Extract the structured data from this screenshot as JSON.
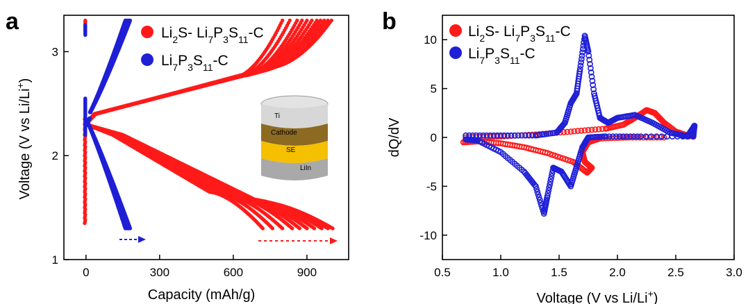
{
  "panels": {
    "a": {
      "letter": "a"
    },
    "b": {
      "letter": "b"
    }
  },
  "colors": {
    "red": "#ff1a1a",
    "blue": "#1f1fd6",
    "axis": "#000000"
  },
  "chart_data": [
    {
      "type": "scatter",
      "panel": "a",
      "xlabel": "Capacity (mAh/g)",
      "ylabel": "Voltage (V vs Li/Li+)",
      "xlim": [
        -90,
        1070
      ],
      "ylim": [
        1.0,
        3.35
      ],
      "xticks": [
        0,
        300,
        600,
        900
      ],
      "yticks": [
        1,
        2,
        3
      ],
      "grid": false,
      "legend_position": "top",
      "series": [
        {
          "name": "Li2S- Li7P3S11-C",
          "name_parts": {
            "p1": "Li",
            "s1": "2",
            "p2": "S- Li",
            "s2": "7",
            "p3": "P",
            "s3": "3",
            "p4": "S",
            "s4": "11",
            "p5": "-C"
          },
          "color": "red",
          "charge_curves_end_capacity": [
            800,
            830,
            860,
            880,
            900,
            920,
            940,
            955,
            970,
            985,
            1000
          ],
          "discharge_curves_end_capacity": [
            720,
            760,
            800,
            840,
            870,
            900,
            930,
            960,
            985,
            1005
          ],
          "charge_start_voltage": 2.3,
          "charge_end_voltage": 3.3,
          "discharge_start_voltage": 2.3,
          "discharge_end_voltage": 1.3
        },
        {
          "name": "Li7P3S11-C",
          "name_parts": {
            "p1": "Li",
            "s1": "7",
            "p2": "P",
            "s2": "3",
            "p3": "S",
            "s3": "11",
            "p4": "-C"
          },
          "color": "blue",
          "charge_end_capacity": [
            160,
            165,
            170,
            175,
            180
          ],
          "discharge_end_capacity": [
            160,
            165,
            170,
            175,
            180
          ],
          "charge_end_voltage": 3.3,
          "discharge_end_voltage": 1.3
        }
      ],
      "inset": {
        "type": "cell-stack",
        "layers": [
          "Ti",
          "Cathode",
          "SE",
          "LiIn"
        ]
      }
    },
    {
      "type": "scatter",
      "panel": "b",
      "xlabel": "Voltage (V vs Li/Li+)",
      "ylabel": "dQ/dV",
      "xlim": [
        0.5,
        3.0
      ],
      "ylim": [
        -12.5,
        12.5
      ],
      "xticks": [
        0.5,
        1.0,
        1.5,
        2.0,
        2.5,
        3.0
      ],
      "yticks": [
        -10,
        -5,
        0,
        5,
        10
      ],
      "grid": false,
      "legend_position": "top-left",
      "series": [
        {
          "name": "Li2S- Li7P3S11-C",
          "color": "red",
          "oxidation_points": [
            [
              0.7,
              0.0
            ],
            [
              1.0,
              0.1
            ],
            [
              1.3,
              0.3
            ],
            [
              1.6,
              0.6
            ],
            [
              1.9,
              0.9
            ],
            [
              2.05,
              1.3
            ],
            [
              2.15,
              2.0
            ],
            [
              2.25,
              2.8
            ],
            [
              2.32,
              2.5
            ],
            [
              2.4,
              1.5
            ],
            [
              2.5,
              0.6
            ],
            [
              2.6,
              0.2
            ],
            [
              2.65,
              0.1
            ]
          ],
          "reduction_points": [
            [
              2.4,
              0.0
            ],
            [
              2.1,
              0.0
            ],
            [
              1.85,
              -0.1
            ],
            [
              1.75,
              -0.5
            ],
            [
              1.7,
              -1.5
            ],
            [
              1.72,
              -2.5
            ],
            [
              1.78,
              -3.1
            ],
            [
              1.74,
              -3.6
            ],
            [
              1.62,
              -2.5
            ],
            [
              1.4,
              -1.6
            ],
            [
              1.2,
              -1.0
            ],
            [
              1.0,
              -0.6
            ],
            [
              0.8,
              -0.4
            ],
            [
              0.68,
              -0.5
            ]
          ]
        },
        {
          "name": "Li7P3S11-C",
          "color": "blue",
          "oxidation_points": [
            [
              0.7,
              0.2
            ],
            [
              1.0,
              0.2
            ],
            [
              1.3,
              0.2
            ],
            [
              1.48,
              0.5
            ],
            [
              1.55,
              1.5
            ],
            [
              1.6,
              3.5
            ],
            [
              1.65,
              4.5
            ],
            [
              1.68,
              7.0
            ],
            [
              1.72,
              10.4
            ],
            [
              1.75,
              8.8
            ],
            [
              1.8,
              4.5
            ],
            [
              1.85,
              2.0
            ],
            [
              1.92,
              1.5
            ],
            [
              2.0,
              2.0
            ],
            [
              2.15,
              2.3
            ],
            [
              2.3,
              1.5
            ],
            [
              2.45,
              0.5
            ],
            [
              2.6,
              0.1
            ],
            [
              2.66,
              1.2
            ],
            [
              2.65,
              0.1
            ]
          ],
          "reduction_points": [
            [
              2.65,
              0.1
            ],
            [
              2.2,
              0.1
            ],
            [
              1.9,
              0.1
            ],
            [
              1.75,
              0.0
            ],
            [
              1.7,
              -1.0
            ],
            [
              1.65,
              -3.0
            ],
            [
              1.6,
              -5.0
            ],
            [
              1.52,
              -3.5
            ],
            [
              1.45,
              -3.1
            ],
            [
              1.4,
              -6.0
            ],
            [
              1.37,
              -7.8
            ],
            [
              1.3,
              -5.0
            ],
            [
              1.2,
              -3.5
            ],
            [
              1.0,
              -1.5
            ],
            [
              0.8,
              -0.3
            ],
            [
              0.7,
              -0.2
            ]
          ]
        }
      ]
    }
  ]
}
